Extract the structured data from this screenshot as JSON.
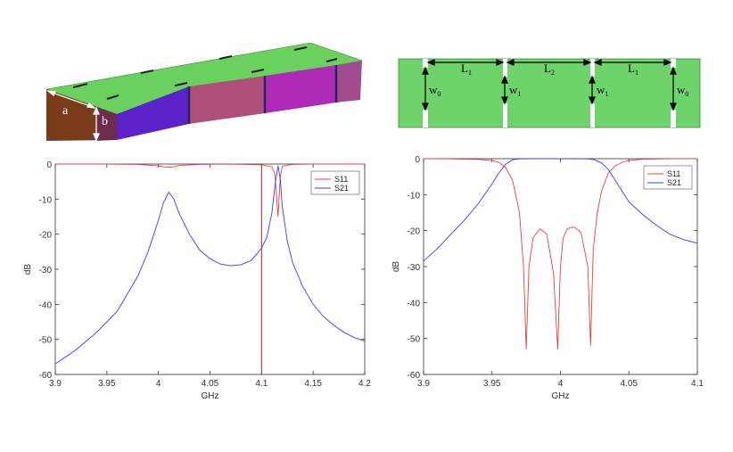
{
  "waveguide_3d": {
    "dim_a": "a",
    "dim_b": "b",
    "colors": {
      "top": "#6ad15f",
      "front": "#7a3b1a",
      "section2": "#5a22c8",
      "section3": "#b0507a",
      "section4": "#b02ab8",
      "section5": "#a04c8e"
    }
  },
  "waveguide_top": {
    "fill": "#6dd36a",
    "labels": {
      "L1_left": "L",
      "L1_left_sub": "1",
      "L2": "L",
      "L2_sub": "2",
      "L1_right": "L",
      "L1_right_sub": "1",
      "w0_left": "w",
      "w0_left_sub": "0",
      "w1_left": "w",
      "w1_left_sub": "1",
      "w1_right": "w",
      "w1_right_sub": "1",
      "w0_right": "w",
      "w0_right_sub": "0"
    }
  },
  "chart_data": [
    {
      "type": "line",
      "xlabel": "GHz",
      "ylabel": "dB",
      "xlim": [
        3.9,
        4.2
      ],
      "ylim": [
        -60,
        0
      ],
      "xticks": [
        "3.9",
        "3.95",
        "4",
        "4.05",
        "4.1",
        "4.15",
        "4.2"
      ],
      "yticks": [
        "0",
        "-10",
        "-20",
        "-30",
        "-40",
        "-50",
        "-60"
      ],
      "legend_position": "top-right",
      "grid": false,
      "marker_line_x": 4.1,
      "series": [
        {
          "name": "S11",
          "color": "#e8413c",
          "x": [
            3.9,
            3.95,
            3.98,
            4.0,
            4.005,
            4.01,
            4.015,
            4.02,
            4.04,
            4.06,
            4.08,
            4.1,
            4.11,
            4.113,
            4.116,
            4.118,
            4.12,
            4.13,
            4.15,
            4.2
          ],
          "y": [
            0,
            -0.02,
            -0.1,
            -0.5,
            -0.8,
            -0.9,
            -0.8,
            -0.4,
            -0.1,
            -0.05,
            -0.08,
            -0.2,
            -0.8,
            -3,
            -15,
            -4,
            -0.6,
            -0.1,
            -0.03,
            0
          ]
        },
        {
          "name": "S21",
          "color": "#3a3aff",
          "x": [
            3.9,
            3.92,
            3.94,
            3.96,
            3.98,
            3.99,
            4.0,
            4.005,
            4.01,
            4.015,
            4.02,
            4.03,
            4.04,
            4.05,
            4.06,
            4.07,
            4.08,
            4.09,
            4.1,
            4.105,
            4.11,
            4.113,
            4.116,
            4.118,
            4.12,
            4.125,
            4.13,
            4.14,
            4.15,
            4.16,
            4.17,
            4.18,
            4.19,
            4.2
          ],
          "y": [
            -57,
            -53,
            -48,
            -42,
            -32,
            -25,
            -16,
            -11,
            -8,
            -10,
            -14,
            -20,
            -24.5,
            -27,
            -28.5,
            -29,
            -28.7,
            -27.5,
            -24,
            -21,
            -14,
            -6,
            -0.5,
            -4,
            -12,
            -22,
            -28,
            -35,
            -40,
            -43.5,
            -46,
            -48,
            -49.5,
            -50.5
          ]
        }
      ]
    },
    {
      "type": "line",
      "xlabel": "GHz",
      "ylabel": "dB",
      "xlim": [
        3.9,
        4.1
      ],
      "ylim": [
        -60,
        0
      ],
      "xticks": [
        "3.9",
        "3.95",
        "4",
        "4.05",
        "4.1"
      ],
      "yticks": [
        "0",
        "-10",
        "-20",
        "-30",
        "-40",
        "-50",
        "-60"
      ],
      "legend_position": "top-right",
      "grid": false,
      "series": [
        {
          "name": "S11",
          "color": "#e8413c",
          "x": [
            3.9,
            3.92,
            3.94,
            3.95,
            3.955,
            3.96,
            3.965,
            3.97,
            3.973,
            3.975,
            3.977,
            3.98,
            3.985,
            3.99,
            3.995,
            3.998,
            4.0,
            4.002,
            4.005,
            4.01,
            4.015,
            4.02,
            4.022,
            4.024,
            4.027,
            4.03,
            4.035,
            4.04,
            4.045,
            4.05,
            4.06,
            4.08,
            4.1
          ],
          "y": [
            -0.01,
            -0.05,
            -0.2,
            -0.5,
            -1,
            -2.5,
            -6,
            -15,
            -30,
            -53,
            -30,
            -22,
            -19.5,
            -21,
            -32,
            -53,
            -30,
            -22,
            -19.5,
            -19,
            -20.5,
            -30,
            -52,
            -25,
            -15,
            -9,
            -4,
            -2,
            -1,
            -0.5,
            -0.15,
            -0.02,
            0
          ]
        },
        {
          "name": "S21",
          "color": "#3a3aff",
          "x": [
            3.9,
            3.91,
            3.92,
            3.93,
            3.94,
            3.95,
            3.955,
            3.96,
            3.965,
            3.97,
            3.98,
            4.0,
            4.02,
            4.025,
            4.03,
            4.035,
            4.04,
            4.045,
            4.05,
            4.06,
            4.07,
            4.08,
            4.09,
            4.1
          ],
          "y": [
            -28.5,
            -25,
            -21,
            -17,
            -12.5,
            -7,
            -4,
            -1.5,
            -0.3,
            -0.05,
            0,
            0,
            -0.05,
            -0.3,
            -1.2,
            -3,
            -6,
            -9,
            -12,
            -15.5,
            -18.5,
            -21,
            -22.5,
            -23.5
          ]
        }
      ]
    }
  ]
}
